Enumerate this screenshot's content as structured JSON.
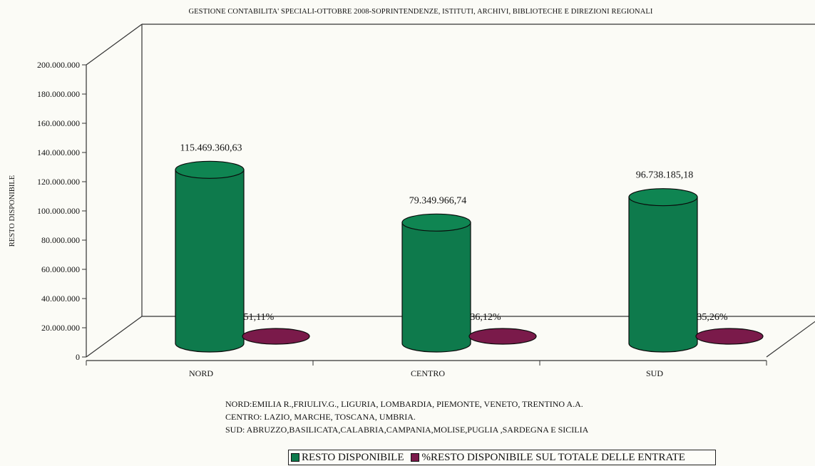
{
  "chart_data": {
    "type": "bar",
    "title": "GESTIONE CONTABILITA' SPECIALI-OTTOBRE 2008-SOPRINTENDENZE, ISTITUTI, ARCHIVI, BIBLIOTECHE E DIREZIONI REGIONALI",
    "ylabel": "RESTO DISPONIBILE",
    "xlabel": "",
    "ylim": [
      0,
      200000000
    ],
    "yticks": [
      "0",
      "20.000.000",
      "40.000.000",
      "60.000.000",
      "80.000.000",
      "100.000.000",
      "120.000.000",
      "140.000.000",
      "160.000.000",
      "180.000.000",
      "200.000.000"
    ],
    "categories": [
      "NORD",
      "CENTRO",
      "SUD"
    ],
    "series": [
      {
        "name": "RESTO DISPONIBILE",
        "color": "#0e7a4c",
        "values": [
          115469360.63,
          79349966.74,
          96738185.18
        ],
        "labels": [
          "115.469.360,63",
          "79.349.966,74",
          "96.738.185,18"
        ]
      },
      {
        "name": "%RESTO DISPONIBILE SUL TOTALE DELLE ENTRATE",
        "color": "#7a1a4a",
        "values": [
          51.11,
          36.12,
          35.26
        ],
        "labels": [
          "51,11%",
          "36,12%",
          "35,26%"
        ]
      }
    ],
    "notes": [
      "NORD:EMILIA R.,FRIULIV.G., LIGURIA, LOMBARDIA, PIEMONTE, VENETO, TRENTINO A.A.",
      "CENTRO: LAZIO, MARCHE, TOSCANA, UMBRIA.",
      "SUD: ABRUZZO,BASILICATA,CALABRIA,CAMPANIA,MOLISE,PUGLIA ,SARDEGNA E SICILIA"
    ],
    "legend": {
      "position": "bottom"
    },
    "grid": false
  }
}
